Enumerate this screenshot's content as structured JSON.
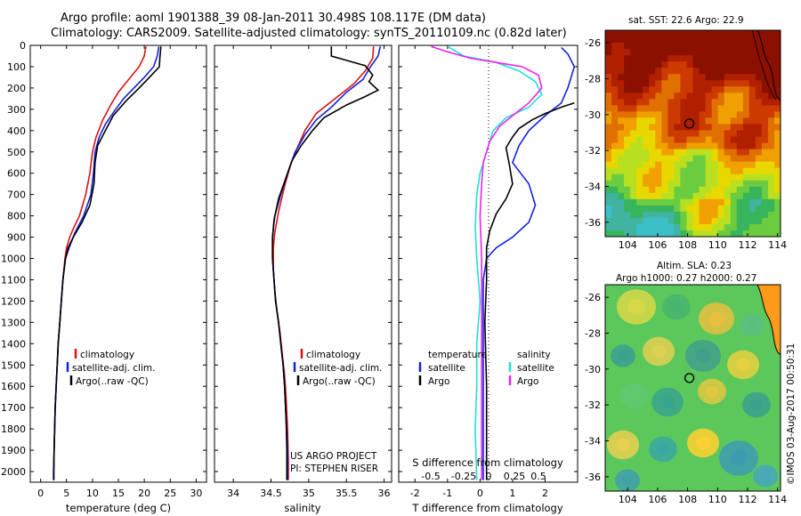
{
  "figure": {
    "title_line1": "Argo profile: aoml 1901388_39 08-Jan-2011 30.498S 108.117E (DM data)",
    "title_line2": "Climatology: CARS2009. Satellite-adjusted climatology: synTS_20110109.nc (0.82d later)",
    "watermark": "©IMOS 03-Aug-2017 00:50:31",
    "project_line1": "US ARGO PROJECT",
    "project_line2": "PI: STEPHEN RISER",
    "colors": {
      "climatology": "#dd1111",
      "satellite": "#1122dd",
      "argo": "#000000",
      "salinity_sat": "#22dddd",
      "salinity_argo": "#ee22ee"
    }
  },
  "chart_data": [
    {
      "type": "line",
      "xlabel": "temperature (deg C)",
      "ylim": [
        2050,
        0
      ],
      "xlim": [
        -2,
        32
      ],
      "xticks": [
        0,
        5,
        10,
        15,
        20,
        25,
        30
      ],
      "yticks": [
        0,
        100,
        200,
        300,
        400,
        500,
        600,
        700,
        800,
        900,
        1000,
        1100,
        1200,
        1300,
        1400,
        1500,
        1600,
        1700,
        1800,
        1900,
        2000
      ],
      "legend": [
        "climatology",
        "satellite-adj. clim.",
        "Argo(..raw -QC)"
      ],
      "series": [
        {
          "name": "climatology",
          "color": "#dd1111",
          "points": [
            [
              20.3,
              5
            ],
            [
              20,
              50
            ],
            [
              19,
              100
            ],
            [
              17,
              160
            ],
            [
              15,
              220
            ],
            [
              13.5,
              280
            ],
            [
              12,
              350
            ],
            [
              10.7,
              430
            ],
            [
              10,
              500
            ],
            [
              9.5,
              600
            ],
            [
              8.7,
              700
            ],
            [
              7.5,
              800
            ],
            [
              6.5,
              850
            ],
            [
              5.6,
              900
            ],
            [
              5,
              950
            ],
            [
              4.7,
              1000
            ],
            [
              4.3,
              1100
            ],
            [
              4,
              1200
            ],
            [
              3.7,
              1300
            ],
            [
              3.4,
              1400
            ],
            [
              3.2,
              1500
            ],
            [
              3,
              1600
            ],
            [
              2.8,
              1700
            ],
            [
              2.7,
              1800
            ],
            [
              2.6,
              1900
            ],
            [
              2.5,
              2000
            ],
            [
              2.5,
              2040
            ]
          ]
        },
        {
          "name": "satellite-adj. clim.",
          "color": "#1122dd",
          "points": [
            [
              22.8,
              5
            ],
            [
              22.5,
              50
            ],
            [
              21.8,
              100
            ],
            [
              20,
              150
            ],
            [
              18,
              200
            ],
            [
              16,
              250
            ],
            [
              14.2,
              310
            ],
            [
              12.5,
              370
            ],
            [
              11.3,
              430
            ],
            [
              10.5,
              500
            ],
            [
              10.2,
              600
            ],
            [
              9.7,
              700
            ],
            [
              8.3,
              800
            ],
            [
              6.6,
              880
            ],
            [
              5.5,
              950
            ],
            [
              4.8,
              1000
            ],
            [
              4.3,
              1100
            ],
            [
              4,
              1200
            ],
            [
              3.7,
              1300
            ],
            [
              3.4,
              1400
            ],
            [
              3.2,
              1500
            ],
            [
              3,
              1600
            ],
            [
              2.8,
              1700
            ],
            [
              2.7,
              1800
            ],
            [
              2.6,
              1900
            ],
            [
              2.5,
              2000
            ],
            [
              2.5,
              2040
            ]
          ]
        },
        {
          "name": "Argo(..raw -QC)",
          "color": "#000000",
          "points": [
            [
              23.2,
              5
            ],
            [
              23,
              60
            ],
            [
              22.9,
              100
            ],
            [
              21,
              150
            ],
            [
              19,
              200
            ],
            [
              16.5,
              260
            ],
            [
              14,
              330
            ],
            [
              12.5,
              400
            ],
            [
              11,
              470
            ],
            [
              10.5,
              550
            ],
            [
              10.3,
              650
            ],
            [
              9.5,
              750
            ],
            [
              8,
              830
            ],
            [
              6.3,
              900
            ],
            [
              5.3,
              950
            ],
            [
              4.8,
              1000
            ],
            [
              4.3,
              1100
            ],
            [
              4,
              1200
            ],
            [
              3.7,
              1300
            ],
            [
              3.4,
              1400
            ],
            [
              3.2,
              1500
            ],
            [
              3,
              1600
            ],
            [
              2.8,
              1700
            ],
            [
              2.7,
              1800
            ],
            [
              2.6,
              1900
            ],
            [
              2.55,
              2000
            ],
            [
              2.55,
              2040
            ]
          ]
        }
      ]
    },
    {
      "type": "line",
      "xlabel": "salinity",
      "ylim": [
        2050,
        0
      ],
      "xlim": [
        33.75,
        36.1
      ],
      "xticks": [
        34,
        34.5,
        35,
        35.5,
        36
      ],
      "legend": [
        "climatology",
        "satellite-adj. clim.",
        "Argo(..raw -QC)"
      ],
      "series": [
        {
          "name": "climatology",
          "color": "#dd1111",
          "points": [
            [
              35.86,
              5
            ],
            [
              35.85,
              60
            ],
            [
              35.75,
              120
            ],
            [
              35.6,
              180
            ],
            [
              35.35,
              250
            ],
            [
              35.1,
              320
            ],
            [
              34.95,
              400
            ],
            [
              34.85,
              480
            ],
            [
              34.76,
              560
            ],
            [
              34.68,
              660
            ],
            [
              34.6,
              780
            ],
            [
              34.55,
              880
            ],
            [
              34.53,
              950
            ],
            [
              34.53,
              1050
            ],
            [
              34.55,
              1150
            ],
            [
              34.58,
              1250
            ],
            [
              34.62,
              1350
            ],
            [
              34.65,
              1450
            ],
            [
              34.68,
              1550
            ],
            [
              34.7,
              1650
            ],
            [
              34.72,
              1800
            ],
            [
              34.73,
              1950
            ],
            [
              34.73,
              2040
            ]
          ]
        },
        {
          "name": "satellite-adj. clim.",
          "color": "#1122dd",
          "points": [
            [
              35.95,
              5
            ],
            [
              35.92,
              50
            ],
            [
              35.82,
              100
            ],
            [
              35.72,
              160
            ],
            [
              35.5,
              220
            ],
            [
              35.3,
              290
            ],
            [
              35.1,
              350
            ],
            [
              34.95,
              420
            ],
            [
              34.82,
              500
            ],
            [
              34.72,
              600
            ],
            [
              34.63,
              700
            ],
            [
              34.55,
              800
            ],
            [
              34.52,
              900
            ],
            [
              34.52,
              1000
            ],
            [
              34.54,
              1100
            ],
            [
              34.56,
              1200
            ],
            [
              34.6,
              1300
            ],
            [
              34.63,
              1400
            ],
            [
              34.66,
              1500
            ],
            [
              34.68,
              1600
            ],
            [
              34.7,
              1750
            ],
            [
              34.72,
              1900
            ],
            [
              34.72,
              2040
            ]
          ]
        },
        {
          "name": "Argo(..raw -QC)",
          "color": "#000000",
          "points": [
            [
              35.3,
              5
            ],
            [
              35.3,
              50
            ],
            [
              35.55,
              75
            ],
            [
              35.75,
              95
            ],
            [
              35.85,
              140
            ],
            [
              35.8,
              170
            ],
            [
              35.92,
              210
            ],
            [
              35.75,
              240
            ],
            [
              35.5,
              280
            ],
            [
              35.2,
              340
            ],
            [
              35.05,
              400
            ],
            [
              34.9,
              470
            ],
            [
              34.78,
              540
            ],
            [
              34.7,
              620
            ],
            [
              34.6,
              720
            ],
            [
              34.54,
              820
            ],
            [
              34.52,
              900
            ],
            [
              34.52,
              1000
            ],
            [
              34.54,
              1100
            ],
            [
              34.56,
              1200
            ],
            [
              34.6,
              1300
            ],
            [
              34.63,
              1400
            ],
            [
              34.66,
              1500
            ],
            [
              34.68,
              1600
            ],
            [
              34.7,
              1750
            ],
            [
              34.71,
              1900
            ],
            [
              34.71,
              2040
            ]
          ]
        }
      ]
    },
    {
      "type": "line",
      "xlabel_top": "S difference from climatology",
      "xlabel": "T difference from climatology",
      "xlim": [
        -2.5,
        3
      ],
      "xticks_bottom": [
        -2,
        -1,
        0,
        1,
        2
      ],
      "xticks_top": [
        "-0.5",
        "-0.25",
        "0",
        "0.25",
        "0.5"
      ],
      "legend_temperature": [
        "temperature",
        "satellite",
        "Argo"
      ],
      "legend_salinity": [
        "salinity",
        "satellite",
        "Argo"
      ],
      "series": [
        {
          "name": "temperature satellite",
          "color": "#1122dd",
          "points": [
            [
              2.5,
              10
            ],
            [
              2.7,
              40
            ],
            [
              2.8,
              70
            ],
            [
              2.9,
              100
            ],
            [
              2.8,
              150
            ],
            [
              2.7,
              200
            ],
            [
              2.5,
              270
            ],
            [
              2,
              330
            ],
            [
              1.5,
              400
            ],
            [
              1.2,
              470
            ],
            [
              1,
              550
            ],
            [
              1.5,
              650
            ],
            [
              1.7,
              750
            ],
            [
              1.5,
              830
            ],
            [
              1,
              900
            ],
            [
              0.5,
              950
            ],
            [
              0.2,
              1000
            ],
            [
              0.1,
              1100
            ],
            [
              0.1,
              1300
            ],
            [
              0.1,
              1600
            ],
            [
              0.1,
              1900
            ],
            [
              0.1,
              2040
            ]
          ]
        },
        {
          "name": "temperature Argo",
          "color": "#000000",
          "points": [
            [
              2.9,
              270
            ],
            [
              2.5,
              290
            ],
            [
              2,
              320
            ],
            [
              1.6,
              350
            ],
            [
              1.2,
              390
            ],
            [
              1,
              430
            ],
            [
              0.8,
              480
            ],
            [
              0.9,
              560
            ],
            [
              1,
              650
            ],
            [
              0.8,
              720
            ],
            [
              0.5,
              790
            ],
            [
              0.3,
              870
            ],
            [
              0.2,
              950
            ],
            [
              0.2,
              1100
            ],
            [
              0.15,
              1300
            ],
            [
              0.2,
              1600
            ],
            [
              0.2,
              1900
            ],
            [
              0.2,
              2040
            ]
          ]
        },
        {
          "name": "salinity satellite",
          "color": "#22dddd",
          "points": [
            [
              -1,
              5
            ],
            [
              -0.5,
              50
            ],
            [
              0.5,
              80
            ],
            [
              1.2,
              120
            ],
            [
              1.7,
              170
            ],
            [
              1.9,
              230
            ],
            [
              1.5,
              290
            ],
            [
              0.8,
              340
            ],
            [
              0.4,
              400
            ],
            [
              0.2,
              500
            ],
            [
              0,
              600
            ],
            [
              -0.1,
              700
            ],
            [
              -0.15,
              850
            ],
            [
              -0.1,
              1000
            ],
            [
              0,
              1200
            ],
            [
              -0.1,
              1400
            ],
            [
              -0.1,
              1600
            ],
            [
              -0.15,
              1800
            ],
            [
              -0.1,
              2040
            ]
          ]
        },
        {
          "name": "salinity Argo",
          "color": "#ee22ee",
          "points": [
            [
              -1.5,
              5
            ],
            [
              -1,
              30
            ],
            [
              -0.3,
              60
            ],
            [
              0.5,
              80
            ],
            [
              1.3,
              100
            ],
            [
              1.8,
              140
            ],
            [
              1.9,
              200
            ],
            [
              1.5,
              270
            ],
            [
              1,
              330
            ],
            [
              0.6,
              380
            ],
            [
              0.3,
              450
            ],
            [
              0.1,
              550
            ],
            [
              0.05,
              650
            ],
            [
              0,
              800
            ],
            [
              0.05,
              1000
            ],
            [
              0.05,
              1300
            ],
            [
              0.05,
              1600
            ],
            [
              0.05,
              1900
            ],
            [
              0.05,
              2040
            ]
          ]
        }
      ]
    },
    {
      "type": "heatmap",
      "title": "sat. SST: 22.6  Argo: 22.9",
      "xlim": [
        102.5,
        114.2
      ],
      "ylim": [
        -36.8,
        -25.3
      ],
      "xticks": [
        104,
        106,
        108,
        110,
        112,
        114
      ],
      "yticks": [
        -26,
        -28,
        -30,
        -32,
        -34,
        -36
      ],
      "marker": {
        "lon": 108.117,
        "lat": -30.498
      }
    },
    {
      "type": "heatmap",
      "title_line1": "Altim. SLA: 0.23",
      "title_line2": "Argo h1000: 0.27 h2000: 0.27",
      "xlim": [
        102.5,
        114.2
      ],
      "ylim": [
        -36.8,
        -25.3
      ],
      "xticks": [
        104,
        106,
        108,
        110,
        112,
        114
      ],
      "yticks": [
        -26,
        -28,
        -30,
        -32,
        -34,
        -36
      ],
      "marker": {
        "lon": 108.117,
        "lat": -30.498
      }
    }
  ]
}
